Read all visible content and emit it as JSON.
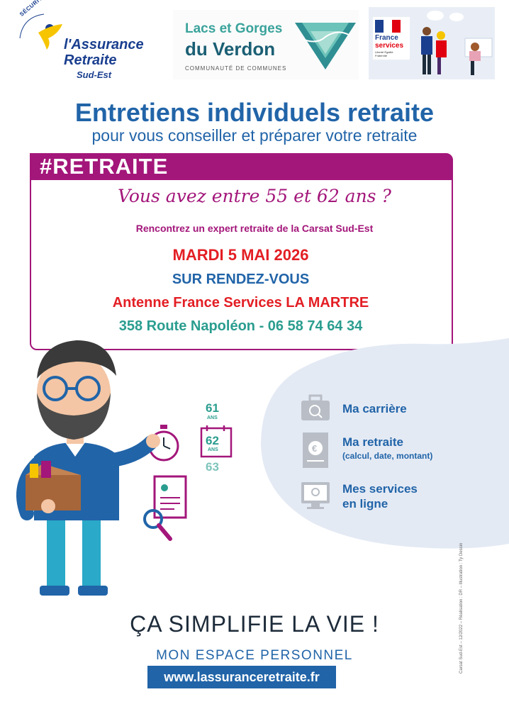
{
  "logos": {
    "assurance": {
      "arc_text": "SÉCURITÉ SOCIALE",
      "line1": "l'Assurance",
      "line2": "Retraite",
      "line3": "Sud-Est"
    },
    "verdon": {
      "line1": "Lacs et Gorges",
      "line2": "du Verdon",
      "line3": "COMMUNAUTÉ DE COMMUNES"
    },
    "france_services": {
      "line1": "France",
      "line2": "services",
      "line3": "Liberté Égalité Fraternité"
    }
  },
  "title": "Entretiens individuels retraite",
  "subtitle": "pour vous conseiller et préparer votre retraite",
  "box": {
    "hashtag": "#RETRAITE",
    "age_question": "Vous avez entre 55 et 62 ans ?",
    "meet": "Rencontrez un expert retraite de la Carsat Sud-Est",
    "date": "MARDI 5 MAI 2026",
    "appointment": "SUR RENDEZ-VOUS",
    "place": "Antenne France Services LA MARTRE",
    "address": "358 Route Napoléon - 06 58 74 64 34"
  },
  "ages": [
    {
      "value": "61",
      "label": "ANS"
    },
    {
      "value": "62",
      "label": "ANS"
    },
    {
      "value": "63",
      "label": ""
    }
  ],
  "services": [
    {
      "icon": "briefcase-icon",
      "label": "Ma carrière",
      "sub": ""
    },
    {
      "icon": "euro-document-icon",
      "label": "Ma retraite",
      "sub": "(calcul, date, montant)"
    },
    {
      "icon": "computer-icon",
      "label_line1": "Mes services",
      "label_line2": "en ligne"
    }
  ],
  "footer": {
    "slogan": "ÇA SIMPLIFIE LA VIE !",
    "espace": "MON ESPACE PERSONNEL",
    "url": "www.lassuranceretraite.fr",
    "credits": "Carsat Sud-Est – 12/2022 – Réalisation : DR – Illustration : Ty Dessin"
  },
  "colors": {
    "blue": "#2164a8",
    "magenta": "#a3167a",
    "red": "#e31e24",
    "teal": "#2a9d8f"
  }
}
